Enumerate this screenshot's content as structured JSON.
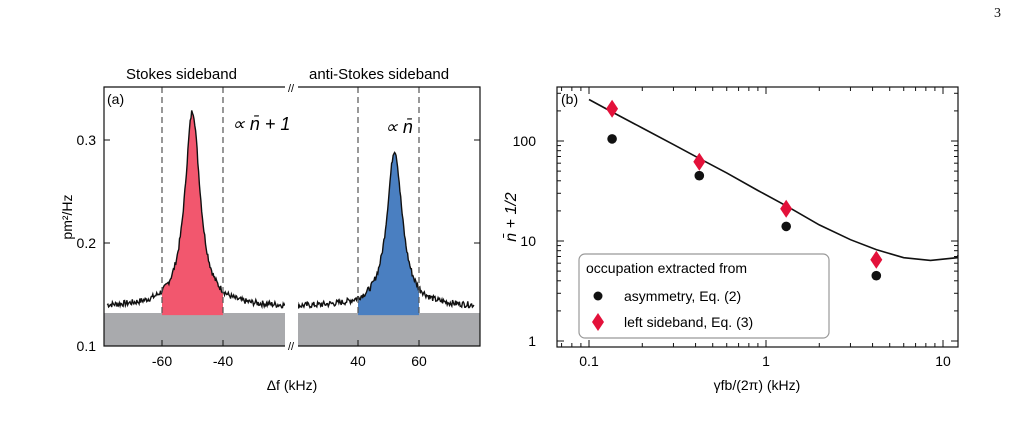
{
  "page_number": "3",
  "panel_a": {
    "label": "(a)",
    "stokes_title": "Stokes sideband",
    "anti_stokes_title": "anti-Stokes sideband",
    "annotation_stokes": "∝ n̄ + 1",
    "annotation_anti_stokes": "∝ n̄",
    "ylabel": "pm²/Hz",
    "xlabel": "Δf (kHz)",
    "y_ticks": [
      "0.1",
      "0.2",
      "0.3"
    ],
    "x_ticks": [
      "-60",
      "-40",
      "40",
      "60"
    ],
    "break_mark": "//",
    "colors": {
      "stokes_fill": "#f2576e",
      "anti_stokes_fill": "#4a7fc1",
      "background_fill": "#a9aaad"
    }
  },
  "panel_b": {
    "label": "(b)",
    "ylabel": "n̄ + 1/2",
    "xlabel": "γfb/(2π) (kHz)",
    "y_ticks": [
      "1",
      "10",
      "100"
    ],
    "x_ticks": [
      "0.1",
      "1",
      "10"
    ],
    "legend_title": "occupation extracted from",
    "legend_entries": [
      "asymmetry, Eq. (2)",
      "left sideband, Eq. (3)"
    ],
    "colors": {
      "asymmetry": "#111111",
      "left_sideband": "#e3113a"
    }
  },
  "chart_data": [
    {
      "type": "line",
      "panel": "(a)",
      "xlabel": "Δf (kHz)",
      "ylabel": "pm²/Hz",
      "ylim": [
        0.1,
        0.34
      ],
      "x_ticks": [
        -60,
        -40,
        40,
        60
      ],
      "series": [
        {
          "name": "Stokes sideband",
          "center": -50,
          "peak": 0.328,
          "baseline": 0.138,
          "integration_window": [
            -60,
            -40
          ]
        },
        {
          "name": "anti-Stokes sideband",
          "center": 52,
          "peak": 0.29,
          "baseline": 0.138,
          "integration_window": [
            40,
            60
          ]
        }
      ],
      "background_level": 0.13
    },
    {
      "type": "scatter",
      "panel": "(b)",
      "xlabel": "γfb/(2π) (kHz)",
      "ylabel": "n̄ + 1/2",
      "x_scale": "log",
      "y_scale": "log",
      "xlim": [
        0.075,
        15
      ],
      "ylim": [
        0.8,
        300
      ],
      "series": [
        {
          "name": "asymmetry, Eq. (2)",
          "x": [
            0.135,
            0.42,
            1.3,
            4.2
          ],
          "y": [
            105,
            45,
            14,
            4.5
          ]
        },
        {
          "name": "left sideband, Eq. (3)",
          "x": [
            0.135,
            0.42,
            1.3,
            4.2
          ],
          "y": [
            210,
            62,
            21,
            6.5
          ]
        },
        {
          "name": "theory",
          "x": [
            0.1,
            0.135,
            0.2,
            0.3,
            0.42,
            0.6,
            0.9,
            1.3,
            2.0,
            3.0,
            4.2,
            6.0,
            8.5,
            12.0,
            15.0
          ],
          "y": [
            260,
            195,
            135,
            92,
            67,
            48,
            32,
            22.5,
            14.5,
            10.3,
            8.2,
            6.8,
            6.4,
            6.8,
            7.2
          ]
        }
      ]
    }
  ]
}
